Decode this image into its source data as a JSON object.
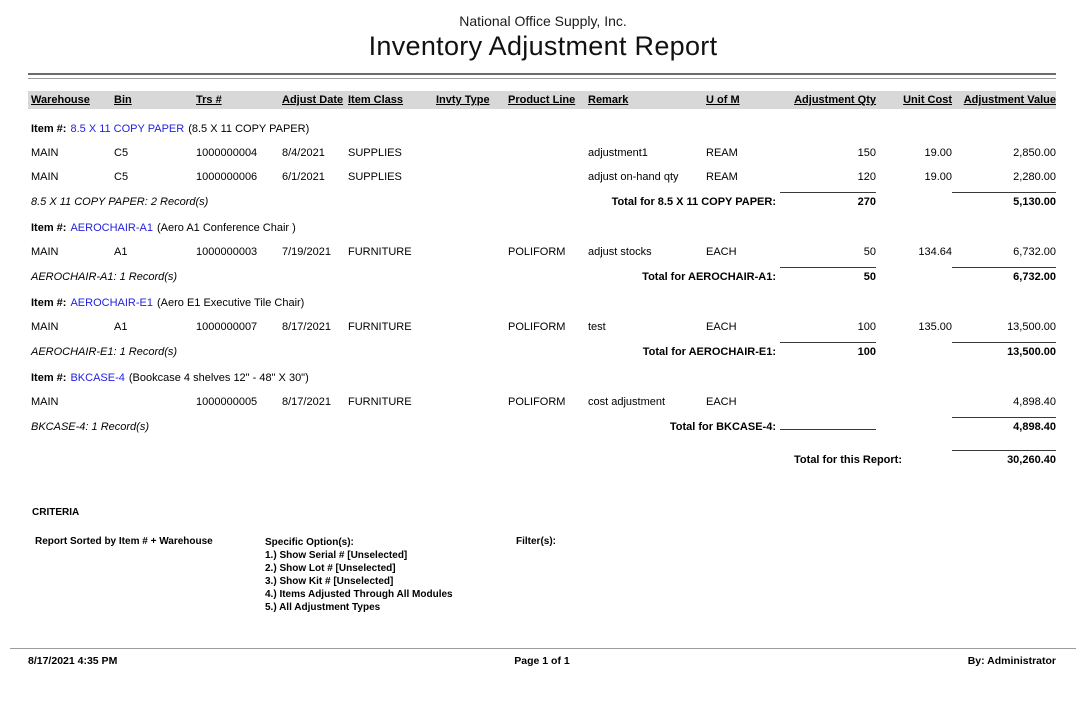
{
  "report": {
    "company": "National Office Supply, Inc.",
    "title": "Inventory Adjustment Report",
    "columns": [
      "Warehouse",
      "Bin",
      "Trs #",
      "Adjust Date",
      "Item Class",
      "Invty Type",
      "Product Line",
      "Remark",
      "U of M",
      "Adjustment Qty",
      "Unit Cost",
      "Adjustment Value"
    ],
    "groups": [
      {
        "item_label": "Item #:",
        "item_code": "8.5 X 11 COPY PAPER",
        "item_desc": "(8.5 X 11 COPY PAPER)",
        "rows": [
          {
            "warehouse": "MAIN",
            "bin": "C5",
            "trs": "1000000004",
            "adjust_date": "8/4/2021",
            "item_class": "SUPPLIES",
            "invty_type": "",
            "product_line": "",
            "remark": "adjustment1",
            "uofm": "REAM",
            "qty": "150",
            "unit_cost": "19.00",
            "value": "2,850.00"
          },
          {
            "warehouse": "MAIN",
            "bin": "C5",
            "trs": "1000000006",
            "adjust_date": "6/1/2021",
            "item_class": "SUPPLIES",
            "invty_type": "",
            "product_line": "",
            "remark": "adjust on-hand qty",
            "uofm": "REAM",
            "qty": "120",
            "unit_cost": "19.00",
            "value": "2,280.00"
          }
        ],
        "records_label": "8.5 X 11 COPY PAPER: 2 Record(s)",
        "total_label": "Total for 8.5 X 11 COPY PAPER:",
        "total_qty": "270",
        "total_value": "5,130.00"
      },
      {
        "item_label": "Item #:",
        "item_code": "AEROCHAIR-A1",
        "item_desc": "(Aero A1 Conference Chair )",
        "rows": [
          {
            "warehouse": "MAIN",
            "bin": "A1",
            "trs": "1000000003",
            "adjust_date": "7/19/2021",
            "item_class": "FURNITURE",
            "invty_type": "",
            "product_line": "POLIFORM",
            "remark": "adjust stocks",
            "uofm": "EACH",
            "qty": "50",
            "unit_cost": "134.64",
            "value": "6,732.00"
          }
        ],
        "records_label": "AEROCHAIR-A1: 1 Record(s)",
        "total_label": "Total for AEROCHAIR-A1:",
        "total_qty": "50",
        "total_value": "6,732.00"
      },
      {
        "item_label": "Item #:",
        "item_code": "AEROCHAIR-E1",
        "item_desc": "(Aero E1 Executive Tile Chair)",
        "rows": [
          {
            "warehouse": "MAIN",
            "bin": "A1",
            "trs": "1000000007",
            "adjust_date": "8/17/2021",
            "item_class": "FURNITURE",
            "invty_type": "",
            "product_line": "POLIFORM",
            "remark": "test",
            "uofm": "EACH",
            "qty": "100",
            "unit_cost": "135.00",
            "value": "13,500.00"
          }
        ],
        "records_label": "AEROCHAIR-E1: 1 Record(s)",
        "total_label": "Total for AEROCHAIR-E1:",
        "total_qty": "100",
        "total_value": "13,500.00"
      },
      {
        "item_label": "Item #:",
        "item_code": "BKCASE-4",
        "item_desc": "(Bookcase 4 shelves 12\" - 48\" X 30\")",
        "rows": [
          {
            "warehouse": "MAIN",
            "bin": "",
            "trs": "1000000005",
            "adjust_date": "8/17/2021",
            "item_class": "FURNITURE",
            "invty_type": "",
            "product_line": "POLIFORM",
            "remark": "cost adjustment",
            "uofm": "EACH",
            "qty": "",
            "unit_cost": "",
            "value": "4,898.40"
          }
        ],
        "records_label": "BKCASE-4: 1 Record(s)",
        "total_label": "Total for BKCASE-4:",
        "total_qty": "",
        "total_value": "4,898.40"
      }
    ],
    "report_total_label": "Total for this Report:",
    "report_total_value": "30,260.40",
    "criteria": {
      "heading": "CRITERIA",
      "sort": "Report Sorted by Item # + Warehouse",
      "options_title": "Specific Option(s):",
      "options": [
        "1.) Show Serial # [Unselected]",
        "2.) Show Lot # [Unselected]",
        "3.) Show Kit # [Unselected]",
        "4.) Items Adjusted Through All Modules",
        "5.) All Adjustment Types"
      ],
      "filters_title": "Filter(s):"
    },
    "footer": {
      "datetime": "8/17/2021 4:35 PM",
      "page": "Page 1 of 1",
      "by": "By: Administrator"
    }
  }
}
